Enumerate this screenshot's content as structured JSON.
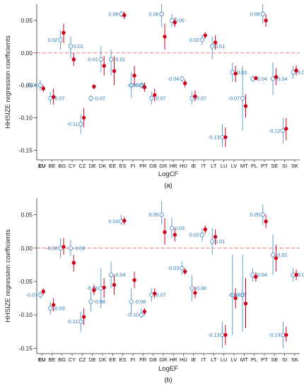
{
  "ylabel": "HHSIZE regression coefficients",
  "colors": {
    "open": "#5b9bd5",
    "filled": "#d0021b",
    "zero": "#f08080",
    "label": "#2a7ab8"
  },
  "chart_data": [
    {
      "type": "scatter",
      "panel_label": "(a)",
      "xlabel": "LogCF",
      "ylabel": "HHSIZE regression coefficients",
      "ylim": [
        -0.165,
        0.075
      ],
      "yticks": [
        0.05,
        0.0,
        -0.05,
        -0.1,
        -0.15
      ],
      "ytick_labels": [
        "0.05",
        "0.00",
        "-0.05",
        "-0.10",
        "-0.15"
      ],
      "categories": [
        "EU",
        "BE",
        "BG",
        "CY",
        "CZ",
        "DE",
        "DK",
        "EE",
        "ES",
        "FI",
        "FR",
        "GB",
        "GR",
        "HR",
        "HU",
        "IE",
        "IT",
        "LT",
        "LU",
        "LV",
        "MT",
        "PL",
        "PT",
        "SE",
        "SI",
        "SK"
      ],
      "bold_category": "EU",
      "series": [
        {
          "marker": "open",
          "values": [
            -0.05,
            -0.07,
            0.02,
            0.01,
            -0.11,
            -0.07,
            -0.01,
            -0.01,
            0.06,
            -0.05,
            -0.05,
            -0.07,
            0.06,
            0.05,
            -0.04,
            -0.07,
            0.02,
            0.01,
            -0.13,
            -0.03,
            -0.07,
            -0.04,
            0.06,
            -0.04,
            -0.12,
            -0.03
          ],
          "ci_low": [
            -0.058,
            -0.08,
            0.005,
            -0.008,
            -0.125,
            -0.075,
            -0.03,
            -0.035,
            0.055,
            -0.07,
            -0.055,
            -0.08,
            0.04,
            0.04,
            -0.045,
            -0.08,
            0.012,
            -0.01,
            -0.145,
            -0.045,
            -0.12,
            -0.045,
            0.045,
            -0.065,
            -0.14,
            -0.04
          ],
          "ci_high": [
            -0.042,
            -0.06,
            0.035,
            0.025,
            -0.095,
            -0.065,
            0.01,
            0.005,
            0.065,
            -0.03,
            -0.045,
            -0.06,
            0.075,
            0.06,
            -0.035,
            -0.06,
            0.028,
            0.025,
            -0.11,
            -0.015,
            -0.02,
            -0.035,
            0.075,
            -0.015,
            -0.1,
            -0.02
          ],
          "data_labels": [
            "-0.05",
            "-0.07",
            "0.02",
            "0.01",
            "-0.11",
            "-0.07",
            "-0.01",
            "-0.01",
            "0.06",
            "-0.05",
            "-0.05",
            "-0.07",
            "0.06",
            "0.05",
            "-0.04",
            "-0.07",
            "0.02",
            "0.01",
            "-0.13",
            "-0.03",
            "-0.07",
            "-0.04",
            "0.06",
            "-0.04",
            "-0.12",
            "-0.03"
          ]
        },
        {
          "marker": "filled",
          "values": [
            -0.055,
            -0.068,
            0.031,
            -0.01,
            -0.1,
            -0.052,
            -0.02,
            -0.028,
            0.058,
            -0.035,
            -0.053,
            -0.065,
            0.025,
            0.047,
            -0.047,
            -0.067,
            0.027,
            0.016,
            -0.13,
            -0.032,
            -0.082,
            -0.039,
            0.05,
            -0.037,
            -0.117,
            -0.027
          ],
          "ci_low": [
            -0.06,
            -0.08,
            0.015,
            -0.02,
            -0.115,
            -0.056,
            -0.035,
            -0.05,
            0.052,
            -0.05,
            -0.06,
            -0.075,
            0.005,
            0.04,
            -0.053,
            -0.075,
            0.022,
            0.005,
            -0.145,
            -0.045,
            -0.1,
            -0.042,
            0.04,
            -0.05,
            -0.135,
            -0.035
          ],
          "ci_high": [
            -0.05,
            -0.055,
            0.045,
            0.0,
            -0.085,
            -0.048,
            -0.005,
            -0.005,
            0.064,
            -0.02,
            -0.046,
            -0.055,
            0.045,
            0.054,
            -0.041,
            -0.058,
            0.032,
            0.027,
            -0.115,
            -0.02,
            -0.064,
            -0.036,
            0.06,
            -0.024,
            -0.1,
            -0.019
          ]
        }
      ]
    },
    {
      "type": "scatter",
      "panel_label": "(b)",
      "xlabel": "LogEF",
      "ylabel": "HHSIZE regression coefficients",
      "ylim": [
        -0.158,
        0.075
      ],
      "yticks": [
        0.05,
        0.0,
        -0.05,
        -0.1,
        -0.15
      ],
      "ytick_labels": [
        "0.05",
        "0.00",
        "-0.05",
        "-0.10",
        "-0.15"
      ],
      "categories": [
        "EU",
        "BE",
        "BG",
        "CY",
        "CZ",
        "DE",
        "DK",
        "EE",
        "ES",
        "FI",
        "FR",
        "GB",
        "GR",
        "HR",
        "HU",
        "IE",
        "IT",
        "LT",
        "LU",
        "LV",
        "MT",
        "PL",
        "PT",
        "SE",
        "SI",
        "SK"
      ],
      "bold_category": "EU",
      "series": [
        {
          "marker": "open",
          "values": [
            -0.07,
            -0.09,
            0.0,
            0.0,
            -0.11,
            -0.08,
            -0.06,
            -0.04,
            0.04,
            -0.08,
            -0.1,
            -0.07,
            0.05,
            0.03,
            -0.03,
            -0.06,
            0.02,
            0.01,
            -0.13,
            -0.07,
            -0.07,
            -0.04,
            0.05,
            -0.01,
            -0.13,
            -0.04
          ],
          "ci_low": [
            -0.075,
            -0.1,
            -0.015,
            -0.012,
            -0.125,
            -0.095,
            -0.09,
            -0.06,
            0.035,
            -0.1,
            -0.105,
            -0.08,
            0.035,
            0.015,
            -0.04,
            -0.08,
            0.01,
            -0.01,
            -0.15,
            -0.13,
            -0.125,
            -0.05,
            0.035,
            -0.04,
            -0.15,
            -0.05
          ],
          "ci_high": [
            -0.065,
            -0.08,
            0.015,
            0.012,
            -0.095,
            -0.065,
            -0.03,
            -0.02,
            0.05,
            -0.06,
            -0.09,
            -0.06,
            0.07,
            0.045,
            -0.02,
            -0.04,
            0.03,
            0.03,
            -0.11,
            -0.01,
            -0.01,
            -0.03,
            0.065,
            0.02,
            -0.11,
            -0.03
          ],
          "data_labels": [
            "-0.07",
            "-0.09",
            "-0.00",
            "-0.00",
            "-0.11",
            "-0.08",
            "-0.06",
            "-0.04",
            "0.04",
            "-0.08",
            "-0.10",
            "-0.07",
            "0.05",
            "0.03",
            "-0.03",
            "-0.06",
            "0.02",
            "0.01",
            "-0.13",
            "-0.07",
            "-0.07",
            "-0.04",
            "0.05",
            "-0.01",
            "-0.13",
            "-0.04"
          ]
        },
        {
          "marker": "filled",
          "values": [
            -0.065,
            -0.085,
            0.002,
            -0.022,
            -0.103,
            -0.063,
            -0.059,
            -0.055,
            0.041,
            -0.048,
            -0.095,
            -0.068,
            0.024,
            0.02,
            -0.035,
            -0.067,
            0.028,
            0.017,
            -0.13,
            -0.075,
            -0.083,
            -0.043,
            0.04,
            -0.015,
            -0.13,
            -0.04
          ],
          "ci_low": [
            -0.07,
            -0.095,
            -0.01,
            -0.035,
            -0.115,
            -0.07,
            -0.075,
            -0.07,
            0.035,
            -0.06,
            -0.1,
            -0.075,
            0.005,
            0.01,
            -0.04,
            -0.075,
            0.022,
            0.005,
            -0.145,
            -0.09,
            -0.12,
            -0.05,
            0.03,
            -0.035,
            -0.14,
            -0.048
          ],
          "ci_high": [
            -0.06,
            -0.075,
            0.015,
            -0.01,
            -0.09,
            -0.055,
            -0.045,
            -0.04,
            0.047,
            -0.035,
            -0.09,
            -0.06,
            0.045,
            0.03,
            -0.03,
            -0.058,
            0.034,
            0.028,
            -0.115,
            -0.06,
            -0.045,
            -0.036,
            0.05,
            0.005,
            -0.118,
            -0.032
          ]
        }
      ]
    }
  ]
}
